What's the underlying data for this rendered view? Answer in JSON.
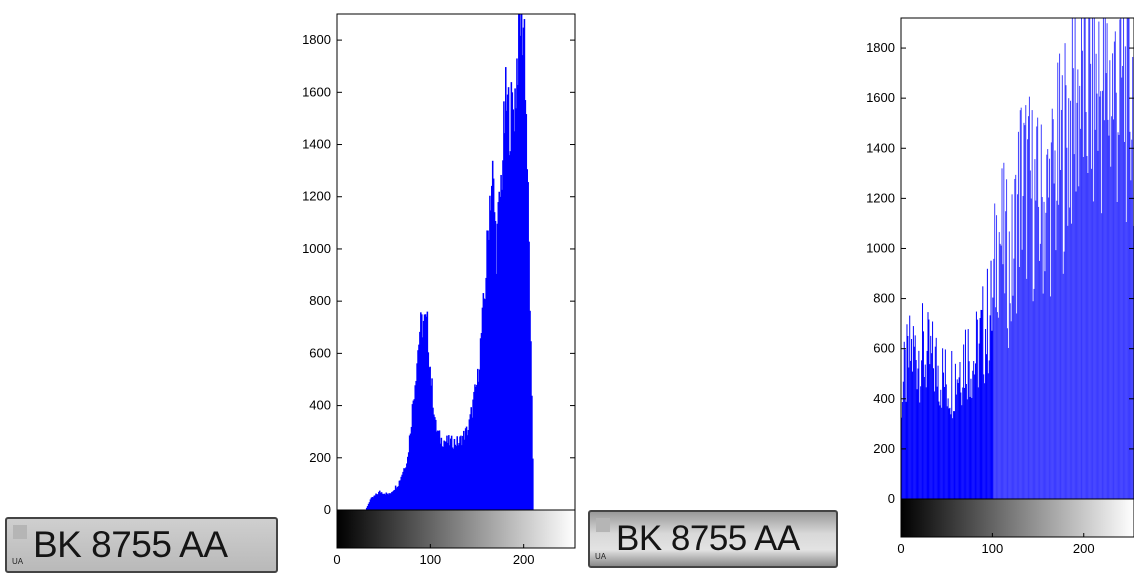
{
  "plates": [
    {
      "text": "BK 8755 AA",
      "country": "UA"
    },
    {
      "text": "BK 8755 AA",
      "country": "UA"
    }
  ],
  "colors": {
    "bars": "#0000ff",
    "axis": "#000000",
    "background": "#ffffff"
  },
  "chart_data": [
    {
      "type": "bar",
      "title": "",
      "xlabel": "",
      "ylabel": "",
      "xlim": [
        0,
        255
      ],
      "ylim": [
        0,
        1900
      ],
      "xticks": [
        0,
        100,
        200
      ],
      "yticks": [
        0,
        200,
        400,
        600,
        800,
        1000,
        1200,
        1400,
        1600,
        1800
      ],
      "grid": false,
      "colorbar": "grayscale",
      "profile": [
        [
          0,
          0
        ],
        [
          30,
          0
        ],
        [
          35,
          40
        ],
        [
          45,
          70
        ],
        [
          55,
          60
        ],
        [
          65,
          100
        ],
        [
          75,
          200
        ],
        [
          83,
          500
        ],
        [
          88,
          690
        ],
        [
          92,
          720
        ],
        [
          96,
          700
        ],
        [
          100,
          500
        ],
        [
          105,
          320
        ],
        [
          110,
          270
        ],
        [
          120,
          260
        ],
        [
          130,
          260
        ],
        [
          140,
          310
        ],
        [
          150,
          500
        ],
        [
          158,
          850
        ],
        [
          163,
          1200
        ],
        [
          166,
          1280
        ],
        [
          170,
          1000
        ],
        [
          175,
          1250
        ],
        [
          180,
          1550
        ],
        [
          185,
          1500
        ],
        [
          190,
          1580
        ],
        [
          195,
          1900
        ],
        [
          200,
          1850
        ],
        [
          205,
          1000
        ],
        [
          210,
          0
        ],
        [
          255,
          0
        ]
      ]
    },
    {
      "type": "bar",
      "title": "",
      "xlabel": "",
      "ylabel": "",
      "xlim": [
        0,
        255
      ],
      "ylim": [
        0,
        1920
      ],
      "xticks": [
        0,
        100,
        200
      ],
      "yticks": [
        0,
        200,
        400,
        600,
        800,
        1000,
        1200,
        1400,
        1600,
        1800
      ],
      "grid": false,
      "colorbar": "grayscale",
      "profile": [
        [
          0,
          500
        ],
        [
          10,
          680
        ],
        [
          20,
          700
        ],
        [
          30,
          650
        ],
        [
          40,
          620
        ],
        [
          50,
          540
        ],
        [
          60,
          600
        ],
        [
          70,
          700
        ],
        [
          80,
          650
        ],
        [
          90,
          780
        ],
        [
          100,
          900
        ],
        [
          105,
          1290
        ],
        [
          110,
          1200
        ],
        [
          120,
          1050
        ],
        [
          130,
          1500
        ],
        [
          140,
          1450
        ],
        [
          150,
          1350
        ],
        [
          160,
          1400
        ],
        [
          170,
          1520
        ],
        [
          180,
          1680
        ],
        [
          190,
          1900
        ],
        [
          200,
          1920
        ],
        [
          255,
          1920
        ]
      ]
    }
  ]
}
